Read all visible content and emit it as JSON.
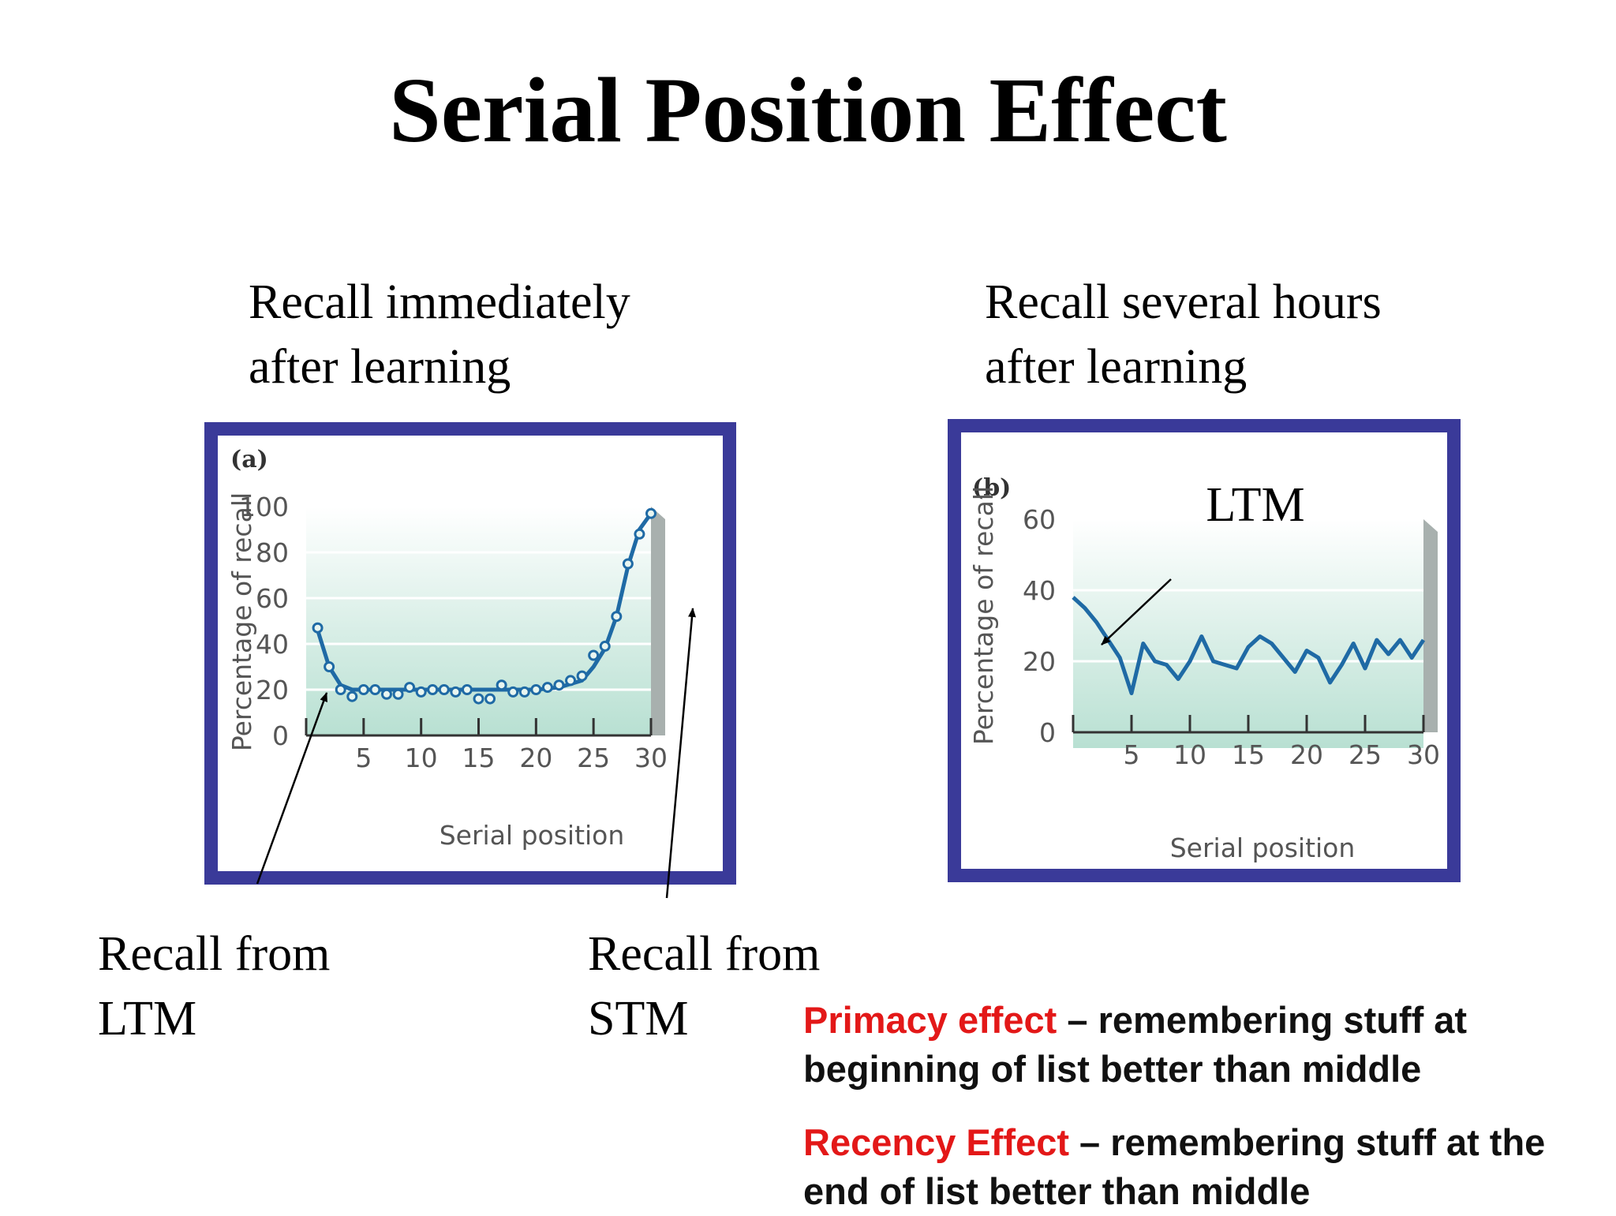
{
  "slide": {
    "title": "Serial Position Effect",
    "left_caption": [
      "Recall immediately",
      "after learning"
    ],
    "right_caption": [
      "Recall several hours",
      "after learning"
    ],
    "annotation_ltm": [
      "Recall from",
      "LTM"
    ],
    "annotation_stm": [
      "Recall from",
      "STM"
    ],
    "ltm_label": "LTM",
    "primacy_term": "Primacy effect",
    "primacy_text": " – remembering stuff at beginning of list better than middle",
    "recency_term": "Recency Effect",
    "recency_text": " – remembering stuff at the end of list better than middle",
    "colors": {
      "frame": "#3a3a99",
      "line": "#1f6aa5",
      "highlight": "#e31818",
      "plot_top": "#ffffff",
      "plot_bottom": "#b8e0d2"
    }
  },
  "chart_data": [
    {
      "type": "line",
      "panel_label": "(a)",
      "xlabel": "Serial position",
      "ylabel": "Percentage of recall",
      "xlim": [
        0,
        30
      ],
      "ylim": [
        0,
        100
      ],
      "x_ticks": [
        5,
        10,
        15,
        20,
        25,
        30
      ],
      "y_ticks": [
        0,
        20,
        40,
        60,
        80,
        100
      ],
      "grid": true,
      "points": {
        "x": [
          1,
          2,
          3,
          4,
          5,
          6,
          7,
          8,
          9,
          10,
          11,
          12,
          13,
          14,
          15,
          16,
          17,
          18,
          19,
          20,
          21,
          22,
          23,
          24,
          25,
          26,
          27,
          28,
          29,
          30
        ],
        "y": [
          47,
          30,
          20,
          17,
          20,
          20,
          18,
          18,
          21,
          19,
          20,
          20,
          19,
          20,
          16,
          16,
          22,
          19,
          19,
          20,
          21,
          22,
          24,
          26,
          35,
          39,
          52,
          75,
          88,
          97
        ]
      },
      "curve": {
        "x": [
          1,
          2,
          3,
          4,
          6,
          10,
          15,
          20,
          22,
          24,
          25,
          26,
          27,
          28,
          29,
          30
        ],
        "y": [
          46,
          30,
          22,
          20,
          20,
          20,
          20,
          20,
          21,
          24,
          30,
          38,
          52,
          74,
          90,
          97
        ]
      }
    },
    {
      "type": "line",
      "panel_label": "(b)",
      "xlabel": "Serial position",
      "ylabel": "Percentage of recall",
      "xlim": [
        0,
        30
      ],
      "ylim": [
        0,
        60
      ],
      "x_ticks": [
        5,
        10,
        15,
        20,
        25,
        30
      ],
      "y_ticks": [
        0,
        20,
        40,
        60
      ],
      "grid": true,
      "series": [
        {
          "x": [
            0,
            1,
            2,
            3,
            4,
            5,
            6,
            7,
            8,
            9,
            10,
            11,
            12,
            13,
            14,
            15,
            16,
            17,
            18,
            19,
            20,
            21,
            22,
            23,
            24,
            25,
            26,
            27,
            28,
            29,
            30
          ],
          "y": [
            38,
            35,
            31,
            26,
            21,
            11,
            25,
            20,
            19,
            15,
            20,
            27,
            20,
            19,
            18,
            24,
            27,
            25,
            21,
            17,
            23,
            21,
            14,
            19,
            25,
            18,
            26,
            22,
            26,
            21,
            26
          ]
        }
      ]
    }
  ]
}
